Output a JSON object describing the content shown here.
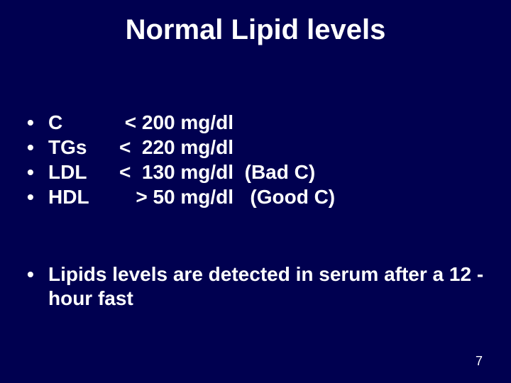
{
  "background_color": "#000050",
  "text_color": "#ffffff",
  "title": "Normal Lipid levels",
  "title_fontsize": 40,
  "body_fontsize": 28,
  "bullet_char": "•",
  "items": [
    {
      "label": "C",
      "value": " < 200 mg/dl"
    },
    {
      "label": "TGs",
      "value": "<  220 mg/dl"
    },
    {
      "label": "LDL",
      "value": "<  130 mg/dl  (Bad C)"
    },
    {
      "label": "HDL",
      "value": "   > 50 mg/dl   (Good C)"
    }
  ],
  "note": "Lipids levels are detected in serum after a 12 -hour fast",
  "page_number": "7"
}
